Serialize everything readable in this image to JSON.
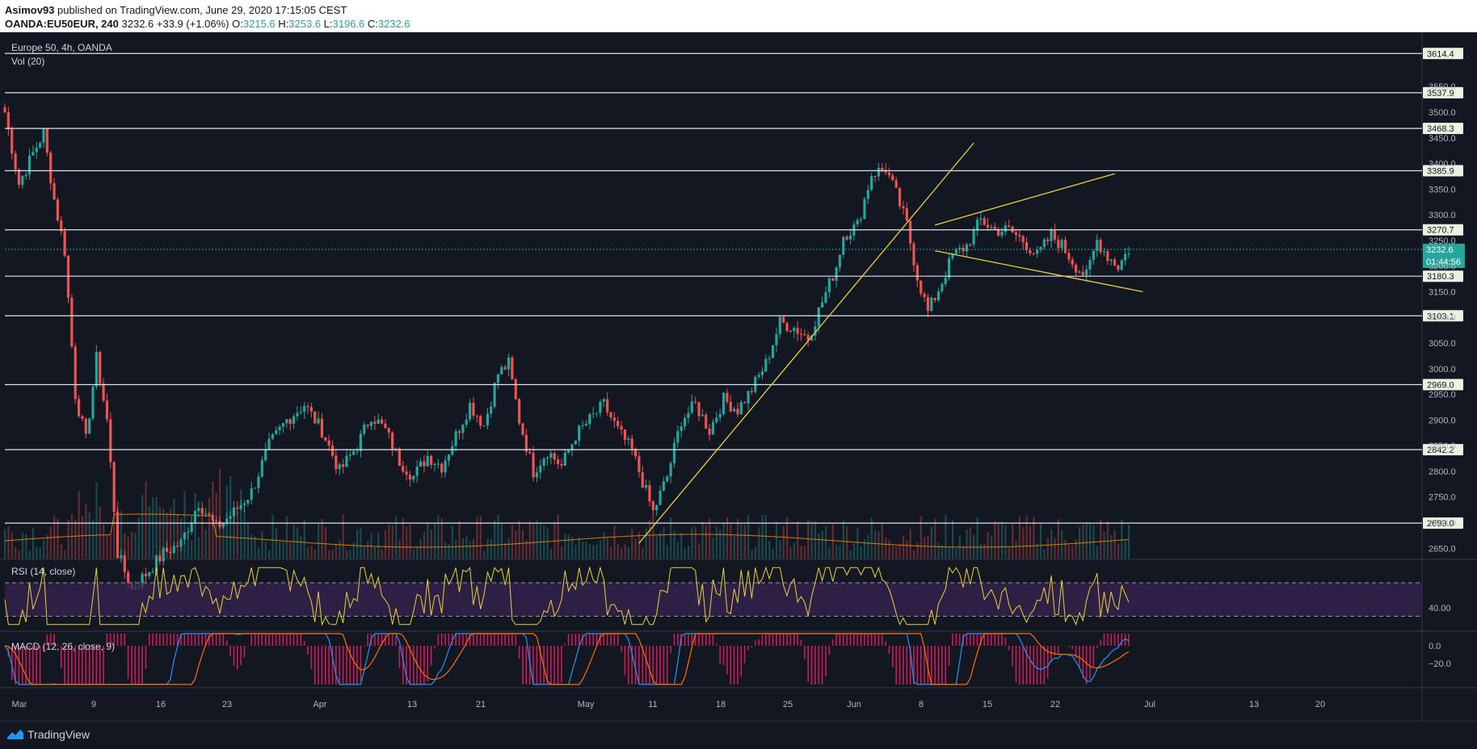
{
  "header": {
    "author": "Asimov93",
    "published_text": "published on TradingView.com, June 29, 2020 17:15:05 CEST",
    "symbol": "OANDA:EU50EUR, 240",
    "last": "3232.6",
    "change": "+33.9 (+1.06%)",
    "o_label": "O:",
    "o_value": "3215.6",
    "h_label": "H:",
    "h_value": "3253.6",
    "l_label": "L:",
    "l_value": "3196.6",
    "c_label": "C:",
    "c_value": "3232.6"
  },
  "main_pane": {
    "title": "Europe 50, 4h, OANDA",
    "indicator": "Vol (20)",
    "price_axis_ticks": [
      "3550.0",
      "3500.0",
      "3450.0",
      "3400.0",
      "3350.0",
      "3300.0",
      "3250.0",
      "3200.0",
      "3150.0",
      "3100.0",
      "3050.0",
      "3000.0",
      "2950.0",
      "2900.0",
      "2850.0",
      "2800.0",
      "2750.0",
      "2700.0",
      "2650.0"
    ],
    "horizontal_levels": [
      "3614.4",
      "3537.9",
      "3468.3",
      "3385.9",
      "3270.7",
      "3180.3",
      "3103.1",
      "2969.0",
      "2842.2",
      "2699.0"
    ],
    "current_price": "3232.6",
    "countdown": "01:44:56"
  },
  "rsi_pane": {
    "title": "RSI (14, close)",
    "tick": "40.00"
  },
  "macd_pane": {
    "title": "MACD (12, 26, close, 9)",
    "ticks": [
      "0.0",
      "−20.0"
    ]
  },
  "time_axis": [
    "Mar",
    "9",
    "16",
    "23",
    "Apr",
    "13",
    "21",
    "May",
    "11",
    "18",
    "25",
    "Jun",
    "8",
    "15",
    "22",
    "Jul",
    "13",
    "20"
  ],
  "footer": {
    "brand": "TradingView"
  },
  "colors": {
    "background": "#131722",
    "up": "#26a69a",
    "down": "#ef5350",
    "trendline": "#e6d23c",
    "rsi_band": "#3a2353",
    "macd_hist": "#e91e63",
    "macd_line": "#2196f3",
    "signal_line": "#ff6d00"
  },
  "chart_data": {
    "type": "candlestick",
    "title": "Europe 50, 4h, OANDA",
    "ylim": [
      2630,
      3640
    ],
    "current_price": 3232.6,
    "levels": [
      3614.4,
      3537.9,
      3468.3,
      3385.9,
      3270.7,
      3180.3,
      3103.1,
      2969.0,
      2842.2,
      2699.0
    ],
    "price_path": [
      [
        0,
        3500
      ],
      [
        4,
        3360
      ],
      [
        8,
        3420
      ],
      [
        11,
        3460
      ],
      [
        14,
        3330
      ],
      [
        17,
        3230
      ],
      [
        20,
        2950
      ],
      [
        23,
        2860
      ],
      [
        26,
        3020
      ],
      [
        29,
        2900
      ],
      [
        32,
        2640
      ],
      [
        36,
        2570
      ],
      [
        40,
        2600
      ],
      [
        45,
        2640
      ],
      [
        50,
        2660
      ],
      [
        55,
        2740
      ],
      [
        60,
        2690
      ],
      [
        65,
        2720
      ],
      [
        70,
        2760
      ],
      [
        75,
        2850
      ],
      [
        80,
        2900
      ],
      [
        85,
        2930
      ],
      [
        90,
        2880
      ],
      [
        95,
        2800
      ],
      [
        100,
        2850
      ],
      [
        104,
        2910
      ],
      [
        108,
        2880
      ],
      [
        112,
        2820
      ],
      [
        116,
        2790
      ],
      [
        120,
        2830
      ],
      [
        124,
        2810
      ],
      [
        128,
        2870
      ],
      [
        132,
        2930
      ],
      [
        136,
        2890
      ],
      [
        140,
        2990
      ],
      [
        143,
        3010
      ],
      [
        146,
        2900
      ],
      [
        150,
        2800
      ],
      [
        154,
        2840
      ],
      [
        158,
        2810
      ],
      [
        162,
        2870
      ],
      [
        166,
        2900
      ],
      [
        170,
        2930
      ],
      [
        174,
        2880
      ],
      [
        178,
        2840
      ],
      [
        182,
        2760
      ],
      [
        184,
        2720
      ],
      [
        188,
        2790
      ],
      [
        192,
        2900
      ],
      [
        196,
        2930
      ],
      [
        200,
        2880
      ],
      [
        204,
        2940
      ],
      [
        208,
        2920
      ],
      [
        212,
        2960
      ],
      [
        216,
        3010
      ],
      [
        220,
        3090
      ],
      [
        224,
        3080
      ],
      [
        228,
        3060
      ],
      [
        232,
        3130
      ],
      [
        236,
        3200
      ],
      [
        238,
        3260
      ],
      [
        242,
        3280
      ],
      [
        246,
        3380
      ],
      [
        250,
        3390
      ],
      [
        253,
        3340
      ],
      [
        256,
        3280
      ],
      [
        259,
        3180
      ],
      [
        262,
        3110
      ],
      [
        266,
        3170
      ],
      [
        269,
        3220
      ],
      [
        273,
        3240
      ],
      [
        277,
        3290
      ],
      [
        281,
        3270
      ],
      [
        285,
        3270
      ],
      [
        289,
        3250
      ],
      [
        293,
        3220
      ],
      [
        297,
        3260
      ],
      [
        300,
        3240
      ],
      [
        304,
        3200
      ],
      [
        307,
        3180
      ],
      [
        310,
        3250
      ],
      [
        313,
        3220
      ],
      [
        316,
        3200
      ],
      [
        319,
        3232
      ]
    ],
    "trendlines": [
      {
        "from": [
          180,
          2660
        ],
        "to": [
          275,
          3440
        ]
      },
      {
        "from": [
          264,
          3280
        ],
        "to": [
          315,
          3380
        ]
      },
      {
        "from": [
          264,
          3230
        ],
        "to": [
          323,
          3150
        ]
      }
    ],
    "rsi": {
      "ylim": [
        15,
        95
      ],
      "upper": 70,
      "lower": 30
    },
    "macd": {
      "zero_label": "0.0",
      "tick": "−20.0"
    }
  }
}
